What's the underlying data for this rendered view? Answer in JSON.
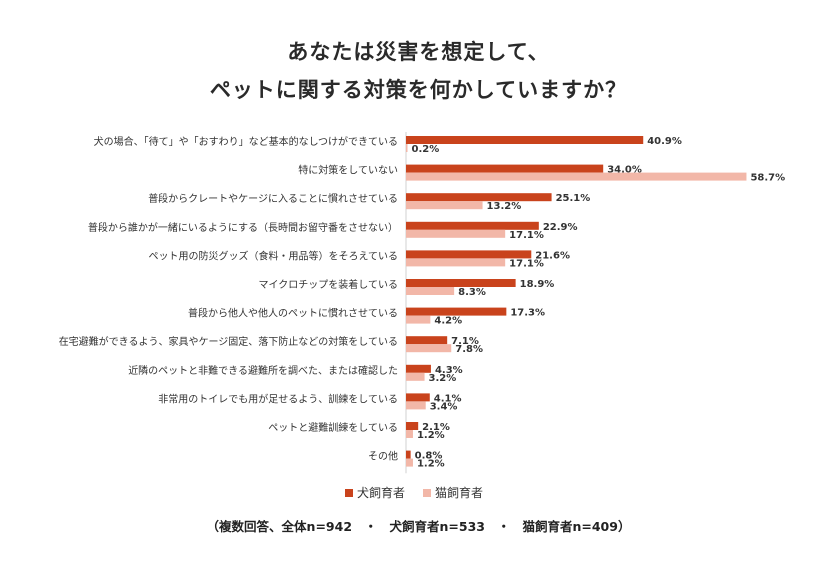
{
  "chart_data": {
    "type": "bar",
    "orientation": "horizontal",
    "title_line1": "あなたは災害を想定して、",
    "title_line2": "ペットに関する対策を何かしていますか？",
    "categories": [
      "犬の場合、「待て」や「おすわり」など基本的なしつけができている",
      "特に対策をしていない",
      "普段からクレートやケージに入ることに慣れさせている",
      "普段から誰かが一緒にいるようにする（長時間お留守番をさせない）",
      "ペット用の防災グッズ（食料・用品等）をそろえている",
      "マイクロチップを装着している",
      "普段から他人や他人のペットに慣れさせている",
      "在宅避難ができるよう、家具やケージ固定、落下防止などの対策をしている",
      "近隣のペットと非難できる避難所を調べた、または確認した",
      "非常用のトイレでも用が足せるよう、訓練をしている",
      "ペットと避難訓練をしている",
      "その他"
    ],
    "series": [
      {
        "name": "犬飼育者",
        "color": "#c9431c",
        "values": [
          40.9,
          34.0,
          25.1,
          22.9,
          21.6,
          18.9,
          17.3,
          7.1,
          4.3,
          4.1,
          2.1,
          0.8
        ],
        "labels": [
          "40.9%",
          "34.0%",
          "25.1%",
          "22.9%",
          "21.6%",
          "18.9%",
          "17.3%",
          "7.1%",
          "4.3%",
          "4.1%",
          "2.1%",
          "0.8%"
        ]
      },
      {
        "name": "猫飼育者",
        "color": "#f2b7a8",
        "values": [
          0.2,
          58.7,
          13.2,
          17.1,
          17.1,
          8.3,
          4.2,
          7.8,
          3.2,
          3.4,
          1.2,
          1.2
        ],
        "labels": [
          "0.2%",
          "58.7%",
          "13.2%",
          "17.1%",
          "17.1%",
          "8.3%",
          "4.2%",
          "7.8%",
          "3.2%",
          "3.4%",
          "1.2%",
          "1.2%"
        ]
      }
    ],
    "xlim": [
      0,
      60
    ],
    "legend_position": "bottom",
    "grid": false
  },
  "footnote": "（複数回答、全体n=942　・　犬飼育者n=533　・　猫飼育者n=409）"
}
